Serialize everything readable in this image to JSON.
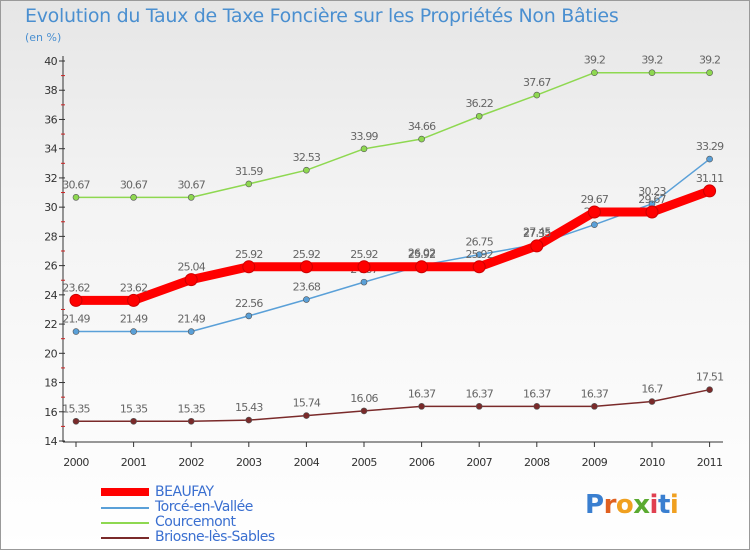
{
  "title": "Evolution du Taux de Taxe Foncière sur les Propriétés Non Bâties",
  "unit_label": "(en %)",
  "logo": {
    "text": "Proxiti",
    "letter_colors": [
      "#3a7fd0",
      "#e06020",
      "#f0a020",
      "#5aaa30",
      "#e04050",
      "#3a7fd0",
      "#f0a020"
    ]
  },
  "legend": [
    {
      "label": "BEAUFAY",
      "color": "#ff0000"
    },
    {
      "label": "Torcé-en-Vallée",
      "color": "#5aa0d8"
    },
    {
      "label": "Courcemont",
      "color": "#8ed850"
    },
    {
      "label": "Briosne-lès-Sables",
      "color": "#7a2a2a"
    }
  ],
  "chart_data": {
    "type": "line",
    "title": "Evolution du Taux de Taxe Foncière sur les Propriétés Non Bâties",
    "ylabel": "(en %)",
    "xlabel": "",
    "ylim": [
      14,
      40
    ],
    "yticks": [
      14,
      16,
      18,
      20,
      22,
      24,
      26,
      28,
      30,
      32,
      34,
      36,
      38,
      40
    ],
    "grid": false,
    "legend_position": "bottom-left",
    "x": [
      "2000",
      "2001",
      "2002",
      "2003",
      "2004",
      "2005",
      "2006",
      "2007",
      "2008",
      "2009",
      "2010",
      "2011"
    ],
    "series": [
      {
        "name": "Courcemont",
        "color": "#8ed850",
        "values": [
          30.67,
          30.67,
          30.67,
          31.59,
          32.53,
          33.99,
          34.66,
          36.22,
          37.67,
          39.2,
          39.2,
          39.2
        ],
        "labels": [
          "30.67",
          "30.67",
          "30.67",
          "31.59",
          "32.53",
          "33.99",
          "34.66",
          "36.22",
          "37.67",
          "39.2",
          "39.2",
          "39.2"
        ]
      },
      {
        "name": "Torcé-en-Vallée",
        "color": "#5aa0d8",
        "values": [
          21.49,
          21.49,
          21.49,
          22.56,
          23.68,
          24.87,
          26.02,
          26.75,
          27.45,
          28.8,
          30.23,
          33.29
        ],
        "labels": [
          "21.49",
          "21.49",
          "21.49",
          "22.56",
          "23.68",
          "24.87",
          "26.02",
          "26.75",
          "27.45",
          "28.8",
          "30.23",
          "33.29"
        ]
      },
      {
        "name": "Briosne-lès-Sables",
        "color": "#7a2a2a",
        "values": [
          15.35,
          15.35,
          15.35,
          15.43,
          15.74,
          16.06,
          16.37,
          16.37,
          16.37,
          16.37,
          16.7,
          17.51
        ],
        "labels": [
          "15.35",
          "15.35",
          "15.35",
          "15.43",
          "15.74",
          "16.06",
          "16.37",
          "16.37",
          "16.37",
          "16.37",
          "16.7",
          "17.51"
        ]
      },
      {
        "name": "BEAUFAY",
        "color": "#ff0000",
        "values": [
          23.62,
          23.62,
          25.04,
          25.92,
          25.92,
          25.92,
          25.92,
          25.92,
          27.35,
          29.67,
          29.67,
          31.11
        ],
        "labels": [
          "23.62",
          "23.62",
          "25.04",
          "25.92",
          "25.92",
          "25.92",
          "25.92",
          "25.92",
          "27.35",
          "29.67",
          "29.67",
          "31.11"
        ]
      }
    ]
  }
}
